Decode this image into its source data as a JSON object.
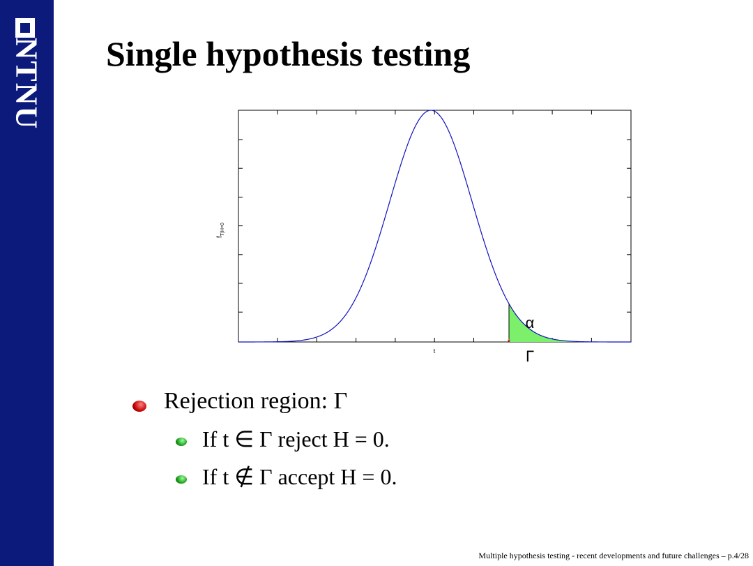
{
  "logo": "NTNU",
  "title": "Single hypothesis testing",
  "figure": {
    "ylabel": "f",
    "ylabel_sub": "T|H=0",
    "xlabel": "t",
    "alpha_label": "α",
    "region_label": "Γ"
  },
  "bullets": [
    {
      "text": "Rejection region: Γ",
      "children": [
        "If t ∈ Γ reject H = 0.",
        "If t ∉ Γ accept H = 0."
      ]
    }
  ],
  "footer": "Multiple hypothesis testing - recent developments and future challenges – p.4/28"
}
